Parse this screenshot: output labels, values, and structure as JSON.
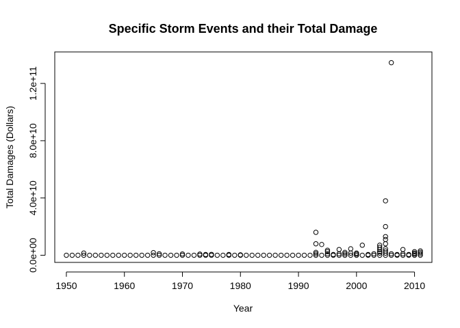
{
  "chart_data": {
    "type": "scatter",
    "title": "Specific Storm Events and their Total Damage",
    "xlabel": "Year",
    "ylabel": "Total Damages (Dollars)",
    "xlim": [
      1948,
      2013
    ],
    "ylim": [
      -5000000000.0,
      142000000000.0
    ],
    "x_ticks": [
      1950,
      1960,
      1970,
      1980,
      1990,
      2000,
      2010
    ],
    "x_tick_labels": [
      "1950",
      "1960",
      "1970",
      "1980",
      "1990",
      "2000",
      "2010"
    ],
    "y_ticks": [
      0,
      40000000000.0,
      80000000000.0,
      120000000000.0
    ],
    "y_tick_labels": [
      "0.0e+00",
      "4.0e+10",
      "8.0e+10",
      "1.2e+11"
    ],
    "grid": false,
    "point_style": "open-circle",
    "points": [
      {
        "x": 1950,
        "y": 0
      },
      {
        "x": 1951,
        "y": 0
      },
      {
        "x": 1952,
        "y": 0
      },
      {
        "x": 1953,
        "y": 0
      },
      {
        "x": 1953,
        "y": 1500000000.0
      },
      {
        "x": 1954,
        "y": 0
      },
      {
        "x": 1955,
        "y": 0
      },
      {
        "x": 1956,
        "y": 0
      },
      {
        "x": 1957,
        "y": 0
      },
      {
        "x": 1958,
        "y": 0
      },
      {
        "x": 1959,
        "y": 0
      },
      {
        "x": 1960,
        "y": 0
      },
      {
        "x": 1961,
        "y": 0
      },
      {
        "x": 1962,
        "y": 0
      },
      {
        "x": 1963,
        "y": 0
      },
      {
        "x": 1964,
        "y": 0
      },
      {
        "x": 1965,
        "y": 0
      },
      {
        "x": 1965,
        "y": 1800000000.0
      },
      {
        "x": 1966,
        "y": 0
      },
      {
        "x": 1966,
        "y": 1000000000.0
      },
      {
        "x": 1967,
        "y": 0
      },
      {
        "x": 1968,
        "y": 0
      },
      {
        "x": 1969,
        "y": 0
      },
      {
        "x": 1970,
        "y": 0
      },
      {
        "x": 1970,
        "y": 900000000.0
      },
      {
        "x": 1971,
        "y": 0
      },
      {
        "x": 1972,
        "y": 0
      },
      {
        "x": 1973,
        "y": 0
      },
      {
        "x": 1973,
        "y": 800000000.0
      },
      {
        "x": 1974,
        "y": 0
      },
      {
        "x": 1974,
        "y": 500000000.0
      },
      {
        "x": 1975,
        "y": 0
      },
      {
        "x": 1975,
        "y": 600000000.0
      },
      {
        "x": 1976,
        "y": 0
      },
      {
        "x": 1977,
        "y": 0
      },
      {
        "x": 1978,
        "y": 0
      },
      {
        "x": 1978,
        "y": 500000000.0
      },
      {
        "x": 1979,
        "y": 0
      },
      {
        "x": 1980,
        "y": 0
      },
      {
        "x": 1980,
        "y": 300000000.0
      },
      {
        "x": 1981,
        "y": 0
      },
      {
        "x": 1982,
        "y": 0
      },
      {
        "x": 1983,
        "y": 0
      },
      {
        "x": 1984,
        "y": 0
      },
      {
        "x": 1985,
        "y": 0
      },
      {
        "x": 1986,
        "y": 0
      },
      {
        "x": 1987,
        "y": 0
      },
      {
        "x": 1988,
        "y": 0
      },
      {
        "x": 1989,
        "y": 0
      },
      {
        "x": 1990,
        "y": 0
      },
      {
        "x": 1991,
        "y": 0
      },
      {
        "x": 1992,
        "y": 0
      },
      {
        "x": 1993,
        "y": 0
      },
      {
        "x": 1993,
        "y": 16000000000.0
      },
      {
        "x": 1993,
        "y": 8000000000.0
      },
      {
        "x": 1993,
        "y": 2000000000.0
      },
      {
        "x": 1993,
        "y": 1000000000.0
      },
      {
        "x": 1994,
        "y": 7500000000.0
      },
      {
        "x": 1994,
        "y": 0
      },
      {
        "x": 1995,
        "y": 0
      },
      {
        "x": 1995,
        "y": 1000000000.0
      },
      {
        "x": 1995,
        "y": 2500000000.0
      },
      {
        "x": 1995,
        "y": 3500000000.0
      },
      {
        "x": 1996,
        "y": 0
      },
      {
        "x": 1996,
        "y": 500000000.0
      },
      {
        "x": 1997,
        "y": 0
      },
      {
        "x": 1997,
        "y": 4000000000.0
      },
      {
        "x": 1997,
        "y": 1000000000.0
      },
      {
        "x": 1998,
        "y": 0
      },
      {
        "x": 1998,
        "y": 2000000000.0
      },
      {
        "x": 1998,
        "y": 1000000000.0
      },
      {
        "x": 1999,
        "y": 0
      },
      {
        "x": 1999,
        "y": 4500000000.0
      },
      {
        "x": 1999,
        "y": 1500000000.0
      },
      {
        "x": 2000,
        "y": 0
      },
      {
        "x": 2000,
        "y": 1500000000.0
      },
      {
        "x": 2000,
        "y": 800000000.0
      },
      {
        "x": 2001,
        "y": 0
      },
      {
        "x": 2001,
        "y": 7000000000.0
      },
      {
        "x": 2002,
        "y": 0
      },
      {
        "x": 2002,
        "y": 500000000.0
      },
      {
        "x": 2003,
        "y": 0
      },
      {
        "x": 2003,
        "y": 1000000000.0
      },
      {
        "x": 2004,
        "y": 7000000000.0
      },
      {
        "x": 2004,
        "y": 5500000000.0
      },
      {
        "x": 2004,
        "y": 4000000000.0
      },
      {
        "x": 2004,
        "y": 2500000000.0
      },
      {
        "x": 2004,
        "y": 1500000000.0
      },
      {
        "x": 2004,
        "y": 0
      },
      {
        "x": 2005,
        "y": 38000000000.0
      },
      {
        "x": 2005,
        "y": 20000000000.0
      },
      {
        "x": 2005,
        "y": 13000000000.0
      },
      {
        "x": 2005,
        "y": 11000000000.0
      },
      {
        "x": 2005,
        "y": 8000000000.0
      },
      {
        "x": 2005,
        "y": 4500000000.0
      },
      {
        "x": 2005,
        "y": 3000000000.0
      },
      {
        "x": 2005,
        "y": 1500000000.0
      },
      {
        "x": 2005,
        "y": 0
      },
      {
        "x": 2006,
        "y": 134500000000.0
      },
      {
        "x": 2006,
        "y": 1000000000.0
      },
      {
        "x": 2006,
        "y": 0
      },
      {
        "x": 2007,
        "y": 0
      },
      {
        "x": 2007,
        "y": 500000000.0
      },
      {
        "x": 2008,
        "y": 4000000000.0
      },
      {
        "x": 2008,
        "y": 1000000000.0
      },
      {
        "x": 2008,
        "y": 0
      },
      {
        "x": 2009,
        "y": 0
      },
      {
        "x": 2009,
        "y": 500000000.0
      },
      {
        "x": 2010,
        "y": 0
      },
      {
        "x": 2010,
        "y": 1500000000.0
      },
      {
        "x": 2010,
        "y": 2500000000.0
      },
      {
        "x": 2010,
        "y": 800000000.0
      },
      {
        "x": 2011,
        "y": 0
      },
      {
        "x": 2011,
        "y": 3000000000.0
      },
      {
        "x": 2011,
        "y": 2000000000.0
      },
      {
        "x": 2011,
        "y": 1000000000.0
      }
    ]
  }
}
